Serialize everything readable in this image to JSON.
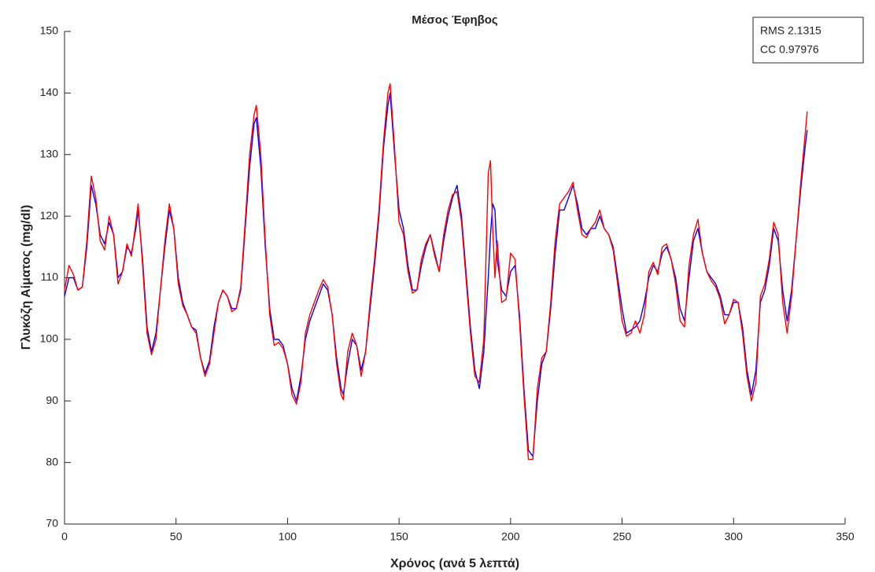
{
  "chart_data": {
    "type": "line",
    "title": "Μέσος Έφηβος",
    "xlabel": "Χρόνος (ανά 5 λεπτά)",
    "ylabel": "Γλυκόζη Αίματος (mg/dl)",
    "annotations": [
      "RMS  2.1315",
      "CC  0.97976"
    ],
    "x": [
      0,
      2,
      4,
      6,
      8,
      10,
      12,
      14,
      16,
      18,
      20,
      22,
      24,
      26,
      28,
      30,
      32,
      33,
      35,
      37,
      39,
      41,
      43,
      45,
      47,
      49,
      51,
      53,
      55,
      57,
      59,
      61,
      63,
      65,
      67,
      69,
      71,
      73,
      75,
      77,
      79,
      81,
      83,
      85,
      86,
      88,
      90,
      92,
      94,
      96,
      98,
      100,
      102,
      104,
      106,
      108,
      110,
      112,
      114,
      116,
      118,
      120,
      122,
      124,
      125,
      127,
      129,
      131,
      133,
      135,
      137,
      139,
      141,
      143,
      145,
      146,
      148,
      150,
      152,
      154,
      156,
      158,
      160,
      162,
      164,
      166,
      168,
      170,
      172,
      174,
      176,
      178,
      180,
      182,
      184,
      186,
      188,
      190,
      191,
      192,
      193,
      194,
      196,
      198,
      200,
      202,
      204,
      206,
      208,
      210,
      212,
      214,
      216,
      218,
      220,
      222,
      224,
      226,
      228,
      230,
      232,
      234,
      236,
      238,
      240,
      242,
      244,
      246,
      248,
      250,
      252,
      254,
      256,
      258,
      260,
      262,
      264,
      266,
      268,
      270,
      272,
      274,
      276,
      278,
      280,
      282,
      284,
      286,
      288,
      290,
      292,
      294,
      296,
      298,
      300,
      302,
      304,
      306,
      308,
      310,
      312,
      314,
      316,
      318,
      320,
      322,
      324,
      326,
      328,
      330,
      332,
      333
    ],
    "series": [
      {
        "color": "#0000ff",
        "values": [
          107,
          110,
          110,
          108,
          108.5,
          115,
          125,
          122,
          117,
          115.5,
          119,
          117,
          110,
          111,
          115,
          114,
          118,
          121,
          113,
          102,
          98,
          101,
          108,
          115,
          121,
          118,
          110,
          106,
          104,
          102,
          101.5,
          97,
          94.5,
          96.5,
          102,
          106,
          108,
          107,
          105,
          105,
          108,
          118,
          128,
          135,
          136,
          128,
          115,
          105,
          100,
          100,
          99,
          96,
          92,
          90,
          94,
          100,
          103,
          105,
          107,
          109,
          108,
          104,
          97,
          92,
          91,
          96,
          100,
          99,
          95,
          98,
          105,
          112,
          120,
          131,
          138,
          140,
          130,
          121,
          118,
          112,
          108,
          108,
          112,
          115,
          117,
          114,
          111,
          116,
          120,
          123,
          125,
          120,
          111,
          102,
          95,
          92,
          98,
          110,
          117,
          122,
          121,
          113,
          108,
          107,
          111,
          112,
          104,
          92,
          82,
          81,
          90,
          96,
          98,
          105,
          114,
          121,
          121,
          123,
          125,
          122,
          118,
          117,
          118,
          118,
          120,
          118,
          117,
          115,
          110,
          105,
          101,
          101.5,
          102,
          103,
          106,
          110,
          112,
          111,
          114,
          115,
          113,
          110,
          105,
          103,
          110,
          116,
          118,
          114,
          111,
          110,
          109,
          107,
          104,
          104,
          106,
          106,
          102,
          95,
          91,
          95,
          106,
          108,
          112,
          118,
          116,
          108,
          103,
          108,
          116,
          124,
          131,
          134
        ]
      },
      {
        "color": "#ff0000",
        "values": [
          108,
          112,
          110.5,
          108,
          108.5,
          116,
          126.5,
          123,
          116,
          114.5,
          120,
          117,
          109,
          111,
          115.5,
          113.5,
          119,
          122,
          112,
          101,
          97.5,
          100,
          108,
          116,
          122,
          118,
          109,
          105.5,
          104,
          102,
          101,
          97,
          94,
          96,
          101,
          106,
          108,
          107,
          104.5,
          105,
          108.5,
          119,
          130,
          136.5,
          138,
          130,
          116,
          104,
          99,
          99.5,
          98.5,
          96,
          91,
          89.5,
          93,
          101,
          104,
          106,
          108,
          109.7,
          108.5,
          104,
          96,
          91,
          90.2,
          98,
          101,
          99,
          94,
          98,
          106,
          113,
          121,
          132,
          140,
          141.5,
          131,
          119,
          117,
          111,
          107.5,
          108,
          113,
          115.5,
          117,
          113.5,
          111,
          117,
          121,
          123.5,
          124,
          119,
          110,
          101,
          94,
          93,
          100,
          127,
          129,
          118,
          110,
          116,
          106,
          106.5,
          114,
          113,
          103,
          91,
          80.5,
          80.5,
          92,
          97,
          98,
          106,
          116,
          122,
          123,
          124,
          125.5,
          121,
          117,
          116.5,
          118,
          119,
          121,
          118,
          117,
          114.5,
          109,
          103,
          100.5,
          101,
          103,
          101,
          104,
          111,
          112.5,
          110.5,
          115,
          115.5,
          113,
          109,
          103,
          102,
          112,
          117,
          119.5,
          114,
          111,
          109.5,
          108.5,
          106.5,
          102.5,
          104,
          106.5,
          106,
          101,
          94,
          90,
          93,
          107,
          109,
          113,
          119,
          117,
          106,
          101,
          107,
          116,
          125,
          133,
          137
        ]
      }
    ],
    "xlim": [
      0,
      350
    ],
    "xticks": [
      0,
      50,
      100,
      150,
      200,
      250,
      300,
      350
    ],
    "ylim": [
      70,
      150
    ],
    "yticks": [
      70,
      80,
      90,
      100,
      110,
      120,
      130,
      140,
      150
    ]
  }
}
